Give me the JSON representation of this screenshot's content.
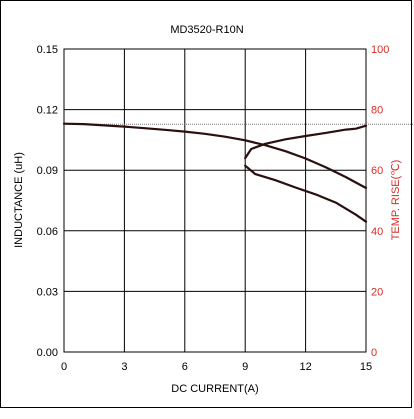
{
  "chart_data": {
    "type": "line",
    "title": "MD3520-R10N",
    "xlabel": "DC CURRENT(A)",
    "ylabel": "INDUCTANCE (uH)",
    "y2label": "TEMP. RISE(℃)",
    "xlim": [
      0,
      15
    ],
    "ylim": [
      0,
      0.15
    ],
    "y2lim": [
      0,
      100
    ],
    "x_ticks": [
      "0",
      "3",
      "6",
      "9",
      "12",
      "15"
    ],
    "y_ticks": [
      "0.00",
      "0.03",
      "0.06",
      "0.09",
      "0.12",
      "0.15"
    ],
    "y2_ticks": [
      "0",
      "20",
      "40",
      "60",
      "80",
      "100"
    ],
    "grid": true,
    "colors": {
      "axis": "#000000",
      "right_axis": "#d62f25",
      "curve": "#2b1010",
      "grid": "#000000"
    },
    "series": [
      {
        "axis": "left",
        "x": [
          0,
          1,
          2,
          3,
          4,
          5,
          6,
          7,
          8,
          9,
          10,
          11,
          12,
          13,
          14,
          15
        ],
        "y": [
          0.113,
          0.1128,
          0.1122,
          0.1116,
          0.1108,
          0.11,
          0.1091,
          0.108,
          0.1066,
          0.1048,
          0.1024,
          0.0994,
          0.0958,
          0.0915,
          0.0866,
          0.0812
        ]
      },
      {
        "axis": "right",
        "x": [
          9,
          9.3,
          10,
          11,
          12,
          13,
          14,
          14.5,
          15
        ],
        "y": [
          64,
          67,
          68.7,
          70.2,
          71.3,
          72.3,
          73.4,
          73.7,
          74.7
        ]
      },
      {
        "axis": "right",
        "x": [
          9,
          9.5,
          10.5,
          11.5,
          12.5,
          13.5,
          14.5,
          15
        ],
        "y": [
          61.5,
          58.7,
          56.7,
          54.3,
          52,
          49.3,
          45.3,
          43
        ]
      }
    ]
  }
}
